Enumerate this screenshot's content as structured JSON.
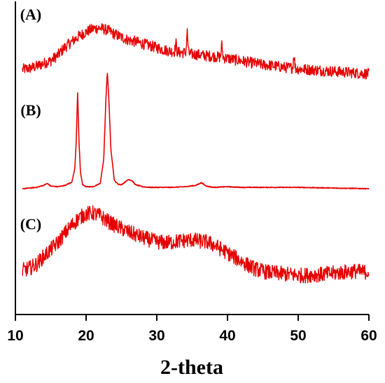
{
  "chart_data": {
    "type": "line",
    "xlabel": "2-theta",
    "ylabel": "",
    "xlim": [
      10,
      60
    ],
    "xticks": [
      10,
      20,
      30,
      40,
      50,
      60
    ],
    "grid": false,
    "y_ticks_shown": false,
    "line_color": "#e60000",
    "series": [
      {
        "name": "(A)",
        "noisy": true,
        "points": [
          [
            11,
            0.08
          ],
          [
            12,
            0.1
          ],
          [
            13,
            0.14
          ],
          [
            14,
            0.2
          ],
          [
            15,
            0.25
          ],
          [
            16,
            0.36
          ],
          [
            17,
            0.52
          ],
          [
            18,
            0.63
          ],
          [
            19,
            0.74
          ],
          [
            20,
            0.82
          ],
          [
            21,
            0.89
          ],
          [
            22,
            0.9
          ],
          [
            23,
            0.86
          ],
          [
            24,
            0.78
          ],
          [
            25,
            0.72
          ],
          [
            26,
            0.66
          ],
          [
            27,
            0.63
          ],
          [
            28,
            0.59
          ],
          [
            29,
            0.55
          ],
          [
            30,
            0.51
          ],
          [
            31,
            0.47
          ],
          [
            32,
            0.44
          ],
          [
            33,
            0.42
          ],
          [
            34,
            0.41
          ],
          [
            35,
            0.38
          ],
          [
            36,
            0.37
          ],
          [
            37,
            0.35
          ],
          [
            38,
            0.34
          ],
          [
            39,
            0.32
          ],
          [
            40,
            0.3
          ],
          [
            41,
            0.27
          ],
          [
            42,
            0.25
          ],
          [
            43,
            0.22
          ],
          [
            44,
            0.2
          ],
          [
            45,
            0.17
          ],
          [
            46,
            0.16
          ],
          [
            47,
            0.14
          ],
          [
            48,
            0.12
          ],
          [
            49,
            0.11
          ],
          [
            50,
            0.09
          ],
          [
            52,
            0.07
          ],
          [
            54,
            0.05
          ],
          [
            56,
            0.03
          ],
          [
            58,
            0.01
          ],
          [
            60,
            -0.01
          ]
        ],
        "peaks": [
          [
            34.3,
            0.82
          ],
          [
            39.2,
            0.56
          ],
          [
            49.4,
            0.37
          ],
          [
            32.7,
            0.6
          ]
        ]
      },
      {
        "name": "(B)",
        "noisy": false,
        "points": [
          [
            11,
            0.0
          ],
          [
            12,
            0.01
          ],
          [
            13,
            0.02
          ],
          [
            14,
            0.05
          ],
          [
            14.5,
            0.08
          ],
          [
            15,
            0.04
          ],
          [
            16,
            0.03
          ],
          [
            17,
            0.05
          ],
          [
            18,
            0.1
          ],
          [
            18.4,
            0.3
          ],
          [
            18.6,
            0.7
          ],
          [
            18.8,
            1.45
          ],
          [
            19.0,
            0.7
          ],
          [
            19.2,
            0.25
          ],
          [
            19.5,
            0.06
          ],
          [
            20,
            0.03
          ],
          [
            21,
            0.03
          ],
          [
            22,
            0.08
          ],
          [
            22.5,
            0.45
          ],
          [
            22.8,
            1.35
          ],
          [
            23.0,
            1.75
          ],
          [
            23.2,
            1.4
          ],
          [
            23.5,
            0.6
          ],
          [
            24,
            0.12
          ],
          [
            24.5,
            0.07
          ],
          [
            25,
            0.06
          ],
          [
            26,
            0.14
          ],
          [
            26.5,
            0.12
          ],
          [
            27,
            0.06
          ],
          [
            28,
            0.03
          ],
          [
            29,
            0.02
          ],
          [
            30,
            0.02
          ],
          [
            32,
            0.02
          ],
          [
            34,
            0.03
          ],
          [
            35.5,
            0.05
          ],
          [
            36.3,
            0.09
          ],
          [
            37,
            0.04
          ],
          [
            38,
            0.02
          ],
          [
            40,
            0.03
          ],
          [
            42,
            0.02
          ],
          [
            45,
            0.02
          ],
          [
            50,
            0.02
          ],
          [
            55,
            0.01
          ],
          [
            60,
            0.0
          ]
        ],
        "peaks": []
      },
      {
        "name": "(C)",
        "noisy": true,
        "points": [
          [
            11,
            0.05
          ],
          [
            12,
            0.08
          ],
          [
            13,
            0.14
          ],
          [
            14,
            0.25
          ],
          [
            15,
            0.35
          ],
          [
            16,
            0.45
          ],
          [
            17,
            0.58
          ],
          [
            18,
            0.7
          ],
          [
            19,
            0.8
          ],
          [
            20,
            0.86
          ],
          [
            21,
            0.87
          ],
          [
            22,
            0.83
          ],
          [
            23,
            0.76
          ],
          [
            24,
            0.7
          ],
          [
            25,
            0.65
          ],
          [
            26,
            0.6
          ],
          [
            27,
            0.56
          ],
          [
            28,
            0.52
          ],
          [
            29,
            0.49
          ],
          [
            30,
            0.46
          ],
          [
            31,
            0.45
          ],
          [
            32,
            0.45
          ],
          [
            33,
            0.47
          ],
          [
            34,
            0.48
          ],
          [
            35,
            0.49
          ],
          [
            36,
            0.47
          ],
          [
            37,
            0.46
          ],
          [
            38,
            0.42
          ],
          [
            39,
            0.36
          ],
          [
            40,
            0.3
          ],
          [
            41,
            0.24
          ],
          [
            42,
            0.18
          ],
          [
            43,
            0.12
          ],
          [
            44,
            0.07
          ],
          [
            45,
            0.04
          ],
          [
            46,
            0.02
          ],
          [
            47,
            0.01
          ],
          [
            48,
            0.0
          ],
          [
            49,
            -0.01
          ],
          [
            50,
            -0.02
          ],
          [
            51,
            -0.02
          ],
          [
            52,
            -0.01
          ],
          [
            53,
            -0.01
          ],
          [
            54,
            0.0
          ],
          [
            55,
            0.01
          ],
          [
            56,
            0.02
          ],
          [
            57,
            0.03
          ],
          [
            58,
            0.04
          ],
          [
            59,
            0.03
          ],
          [
            60,
            0.03
          ]
        ],
        "peaks": []
      }
    ]
  }
}
